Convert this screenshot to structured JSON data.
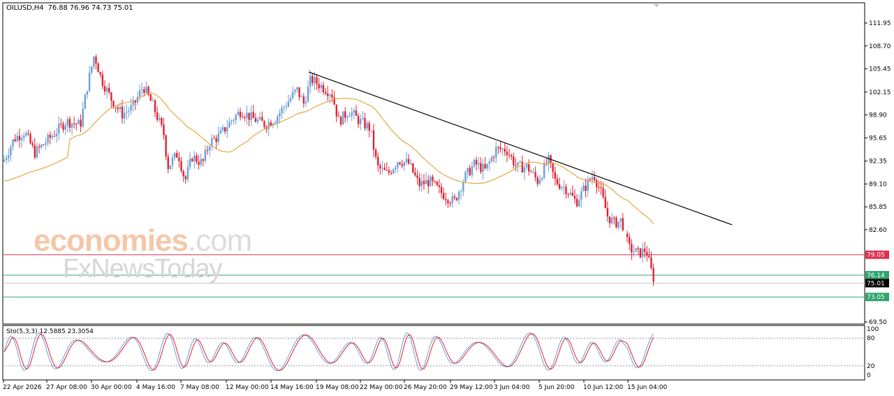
{
  "header": {
    "symbol": "OILUSD,H4",
    "ohlc": "76.88 76.96 74.73 75.01"
  },
  "stochastic": {
    "label": "Sto(5,3,3) 12.5885 23.3054",
    "levels": [
      "100",
      "80",
      "20",
      "0"
    ]
  },
  "price_axis": {
    "ticks": [
      "111.95",
      "108.70",
      "105.45",
      "102.15",
      "98.90",
      "95.65",
      "92.35",
      "89.10",
      "85.85",
      "82.60",
      "69.50"
    ]
  },
  "price_tags": [
    {
      "label": "79.05",
      "value": 79.05,
      "color": "#e03050"
    },
    {
      "label": "76.14",
      "value": 76.14,
      "color": "#2ea36e"
    },
    {
      "label": "75.01",
      "value": 75.01,
      "color": "#000000"
    },
    {
      "label": "73.05",
      "value": 73.05,
      "color": "#2ea36e"
    }
  ],
  "time_axis": {
    "labels": [
      "22 Apr 2026",
      "27 Apr 08:00",
      "30 Apr 00:00",
      "4 May 16:00",
      "7 May 08:00",
      "12 May 00:00",
      "14 May 16:00",
      "19 May 08:00",
      "22 May 00:00",
      "26 May 20:00",
      "29 May 12:00",
      "3 Jun 04:00",
      "5 Jun 20:00",
      "10 Jun 12:00",
      "15 Jun 04:00"
    ]
  },
  "watermark": {
    "line1_a": "economies",
    "line1_b": ".com",
    "line2": "FxNewsToday"
  },
  "colors": {
    "up": "#6a9fd8",
    "down": "#e0202f",
    "ma": "#e8a640",
    "trendline": "#000000",
    "sto_main": "#6a9fd8",
    "sto_signal": "#e0202f"
  },
  "chart_data": {
    "type": "candlestick",
    "ylim": [
      69.5,
      113.5
    ],
    "horizontal_lines": [
      79.05,
      76.14,
      75.01,
      73.05
    ],
    "sample_closes": [
      92.0,
      96.5,
      98.0,
      108.0,
      104.0,
      100.0,
      98.5,
      91.0,
      90.5,
      97.5,
      99.5,
      98.5,
      104.5,
      103.0,
      97.5,
      96.0,
      90.5,
      87.0,
      93.5,
      95.0,
      91.5,
      90.0,
      89.5,
      87.0,
      84.5,
      79.0,
      75.01
    ]
  }
}
